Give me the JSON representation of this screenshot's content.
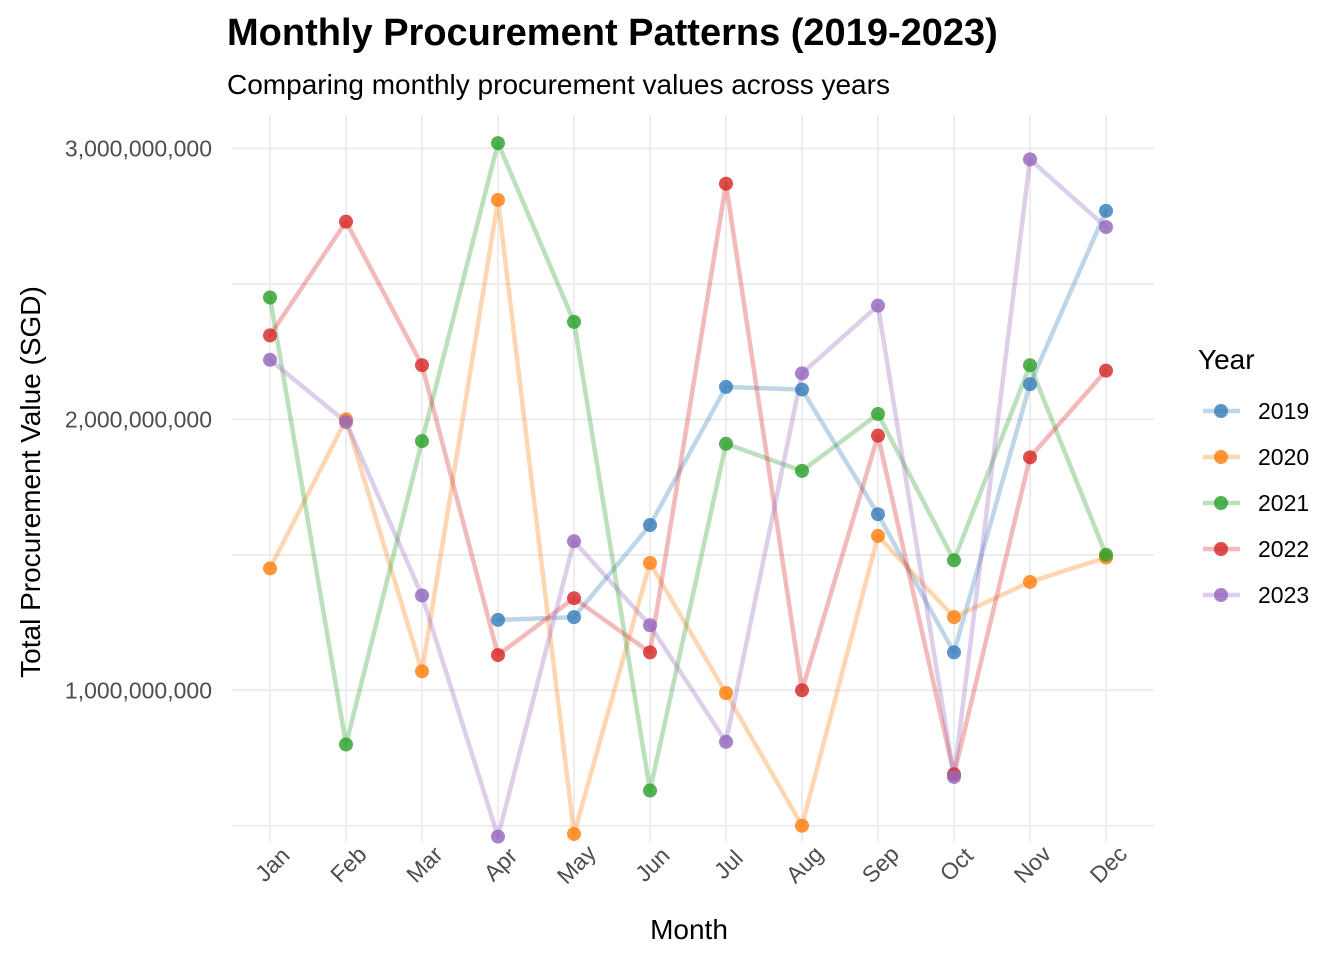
{
  "chart_data": {
    "type": "line",
    "title": "Monthly Procurement Patterns (2019-2023)",
    "subtitle": "Comparing monthly procurement values across years",
    "xlabel": "Month",
    "ylabel": "Total Procurement Value (SGD)",
    "categories": [
      "Jan",
      "Feb",
      "Mar",
      "Apr",
      "May",
      "Jun",
      "Jul",
      "Aug",
      "Sep",
      "Oct",
      "Nov",
      "Dec"
    ],
    "ylim": [
      440000000,
      3120000000
    ],
    "yticks": [
      1000000000,
      2000000000,
      3000000000
    ],
    "ytick_labels": [
      "1,000,000,000",
      "2,000,000,000",
      "3,000,000,000"
    ],
    "grid": true,
    "legend": {
      "title": "Year",
      "position": "right"
    },
    "series": [
      {
        "name": "2019",
        "color": "#377eb8",
        "values": [
          null,
          null,
          null,
          1260000000,
          1270000000,
          1610000000,
          2120000000,
          2110000000,
          1650000000,
          1140000000,
          2130000000,
          2770000000
        ]
      },
      {
        "name": "2020",
        "color": "#ff7f0e",
        "values": [
          1450000000,
          2000000000,
          1070000000,
          2810000000,
          470000000,
          1470000000,
          990000000,
          500000000,
          1570000000,
          1270000000,
          1400000000,
          1490000000
        ]
      },
      {
        "name": "2021",
        "color": "#2ca02c",
        "values": [
          2450000000,
          800000000,
          1920000000,
          3020000000,
          2360000000,
          630000000,
          1910000000,
          1810000000,
          2020000000,
          1480000000,
          2200000000,
          1500000000
        ]
      },
      {
        "name": "2022",
        "color": "#d62728",
        "values": [
          2310000000,
          2730000000,
          2200000000,
          1130000000,
          1340000000,
          1140000000,
          2870000000,
          1000000000,
          1940000000,
          690000000,
          1860000000,
          2180000000
        ]
      },
      {
        "name": "2023",
        "color": "#9467bd",
        "values": [
          2220000000,
          1990000000,
          1350000000,
          460000000,
          1550000000,
          1240000000,
          810000000,
          2170000000,
          2420000000,
          680000000,
          2960000000,
          2710000000
        ]
      }
    ]
  }
}
